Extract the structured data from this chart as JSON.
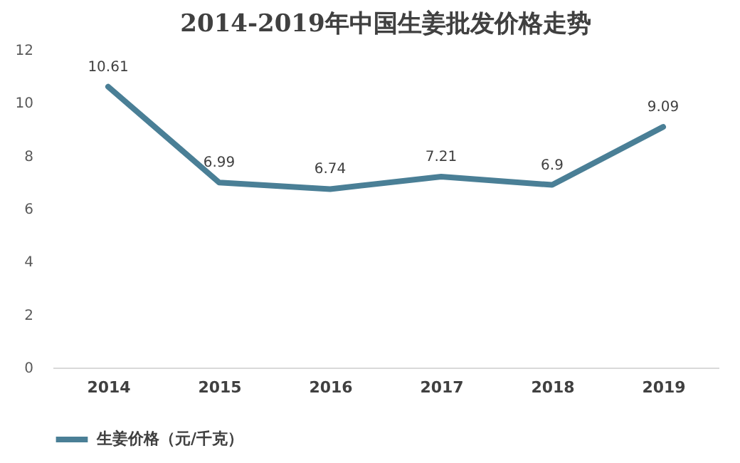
{
  "chart_data": {
    "type": "line",
    "title": "2014-2019年中国生姜批发价格走势",
    "categories": [
      "2014",
      "2015",
      "2016",
      "2017",
      "2018",
      "2019"
    ],
    "series": [
      {
        "name": "生姜价格（元/千克）",
        "color": "#4a7f96",
        "values": [
          10.61,
          6.99,
          6.74,
          7.21,
          6.9,
          9.09
        ]
      }
    ],
    "ylim": [
      0,
      12
    ],
    "yticks": [
      0,
      2,
      4,
      6,
      8,
      10,
      12
    ],
    "grid": false,
    "legend": "bottom",
    "data_labels": true,
    "marker": "none",
    "line_style": "solid"
  }
}
